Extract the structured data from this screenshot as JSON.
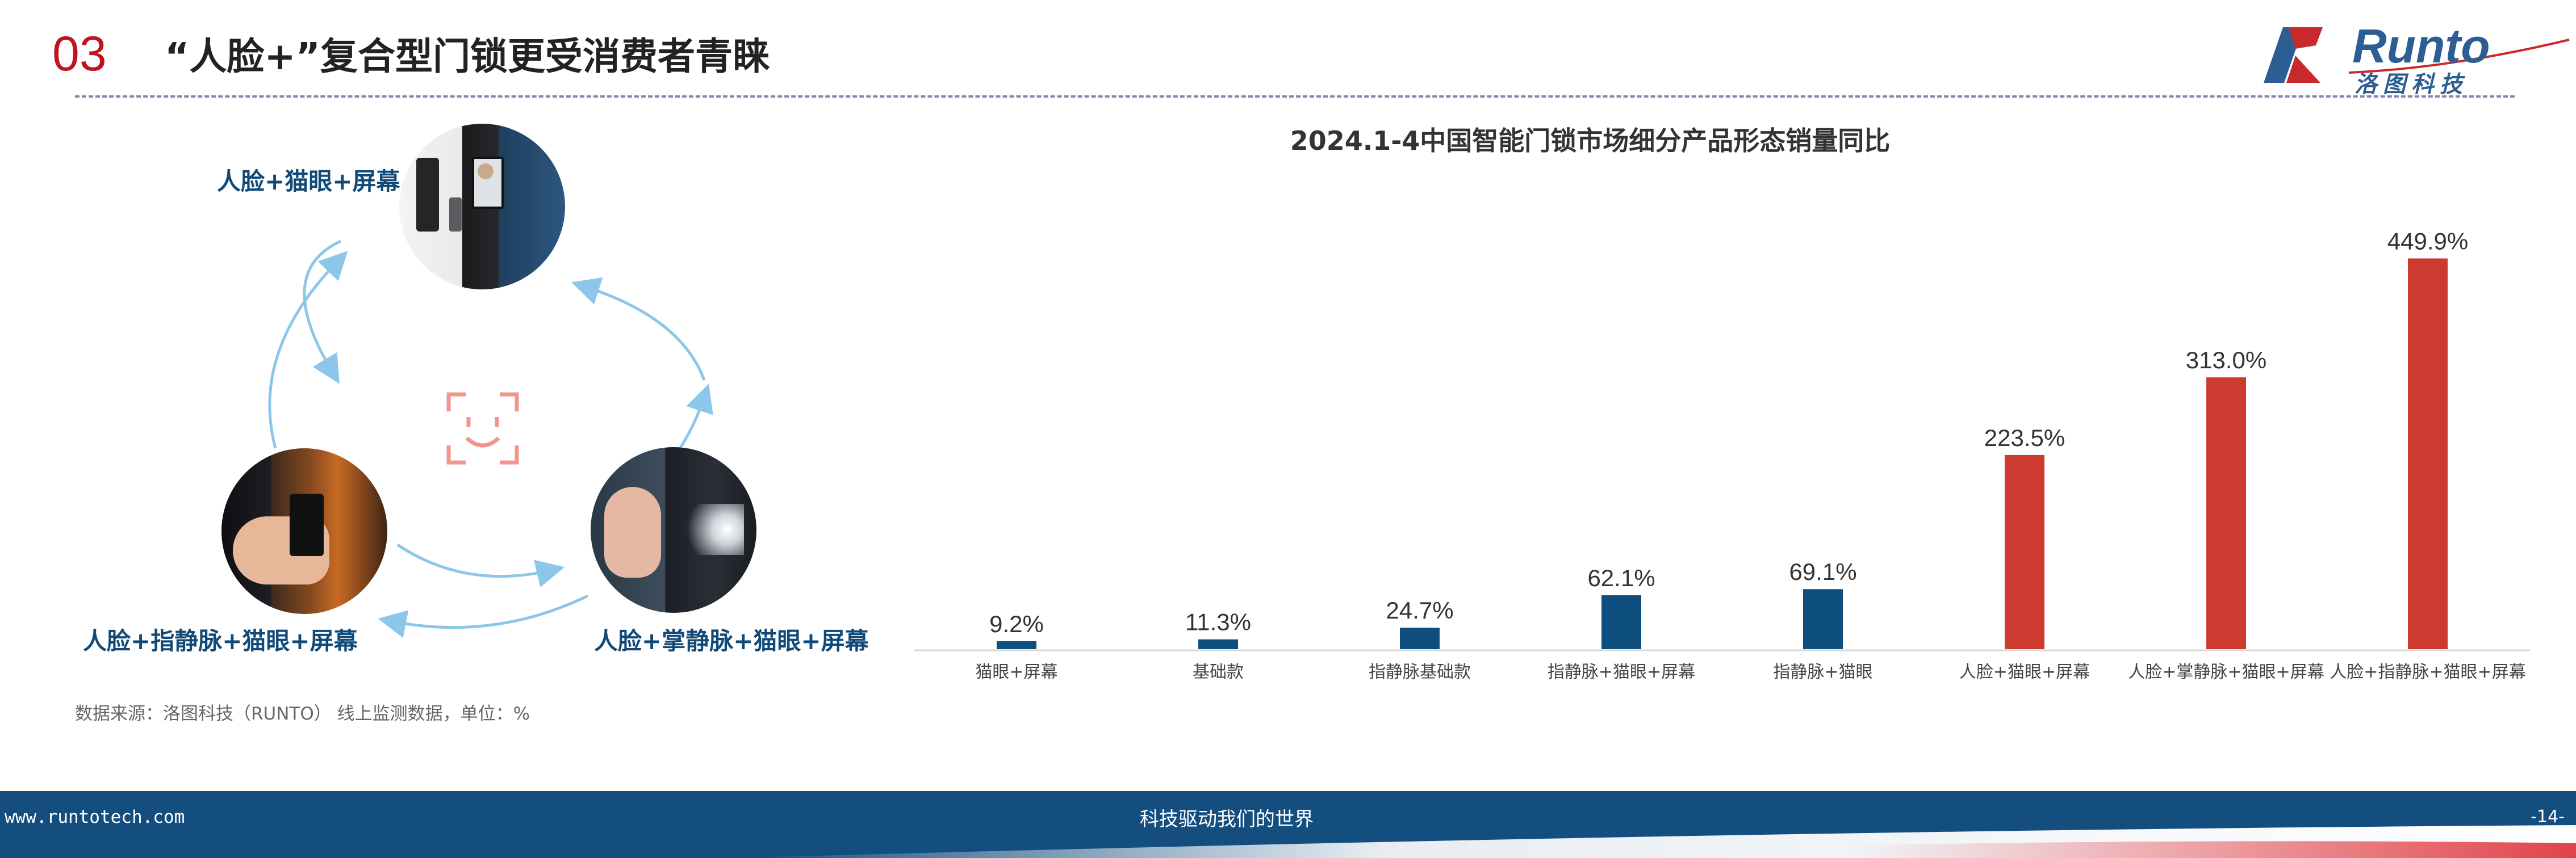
{
  "header": {
    "section_number": "03",
    "title": "“人脸+”复合型门锁更受消费者青睐",
    "logo": {
      "brand": "Runto",
      "brand_cn": "洛图科技",
      "brand_color": "#2c5d93",
      "accent_color": "#c8292b"
    }
  },
  "diagram": {
    "methods": [
      {
        "label": "人脸+猫眼+屏幕"
      },
      {
        "label": "人脸+指静脉+猫眼+屏幕"
      },
      {
        "label": "人脸+掌静脉+猫眼+屏幕"
      }
    ],
    "center_icon": "face-recognition-icon",
    "arrow_color": "#8cc6e8",
    "label_color": "#114a78"
  },
  "source_note": "数据来源：洛图科技（RUNTO） 线上监测数据，单位：%",
  "chart_data": {
    "type": "bar",
    "title": "2024.1-4中国智能门锁市场细分产品形态销量同比",
    "categories": [
      "猫眼+屏幕",
      "基础款",
      "指静脉基础款",
      "指静脉+猫眼+屏幕",
      "指静脉+猫眼",
      "人脸+猫眼+屏幕",
      "人脸+掌静脉+猫眼+屏幕",
      "人脸+指静脉+猫眼+屏幕"
    ],
    "values": [
      9.2,
      11.3,
      24.7,
      62.1,
      69.1,
      223.5,
      313.0,
      449.9
    ],
    "labels": [
      "9.2%",
      "11.3%",
      "24.7%",
      "62.1%",
      "69.1%",
      "223.5%",
      "313.0%",
      "449.9%"
    ],
    "colors": [
      "#0f4f80",
      "#0f4f80",
      "#0f4f80",
      "#0f4f80",
      "#0f4f80",
      "#cd3a2f",
      "#cd3a2f",
      "#cd3a2f"
    ],
    "xlabel": "",
    "ylabel": "",
    "ylim": [
      0,
      460
    ],
    "grid": false,
    "legend": "none"
  },
  "footer": {
    "url": "www.runtotech.com",
    "slogan": "科技驱动我们的世界",
    "page": "-14-",
    "band_color": "#144e7f"
  }
}
